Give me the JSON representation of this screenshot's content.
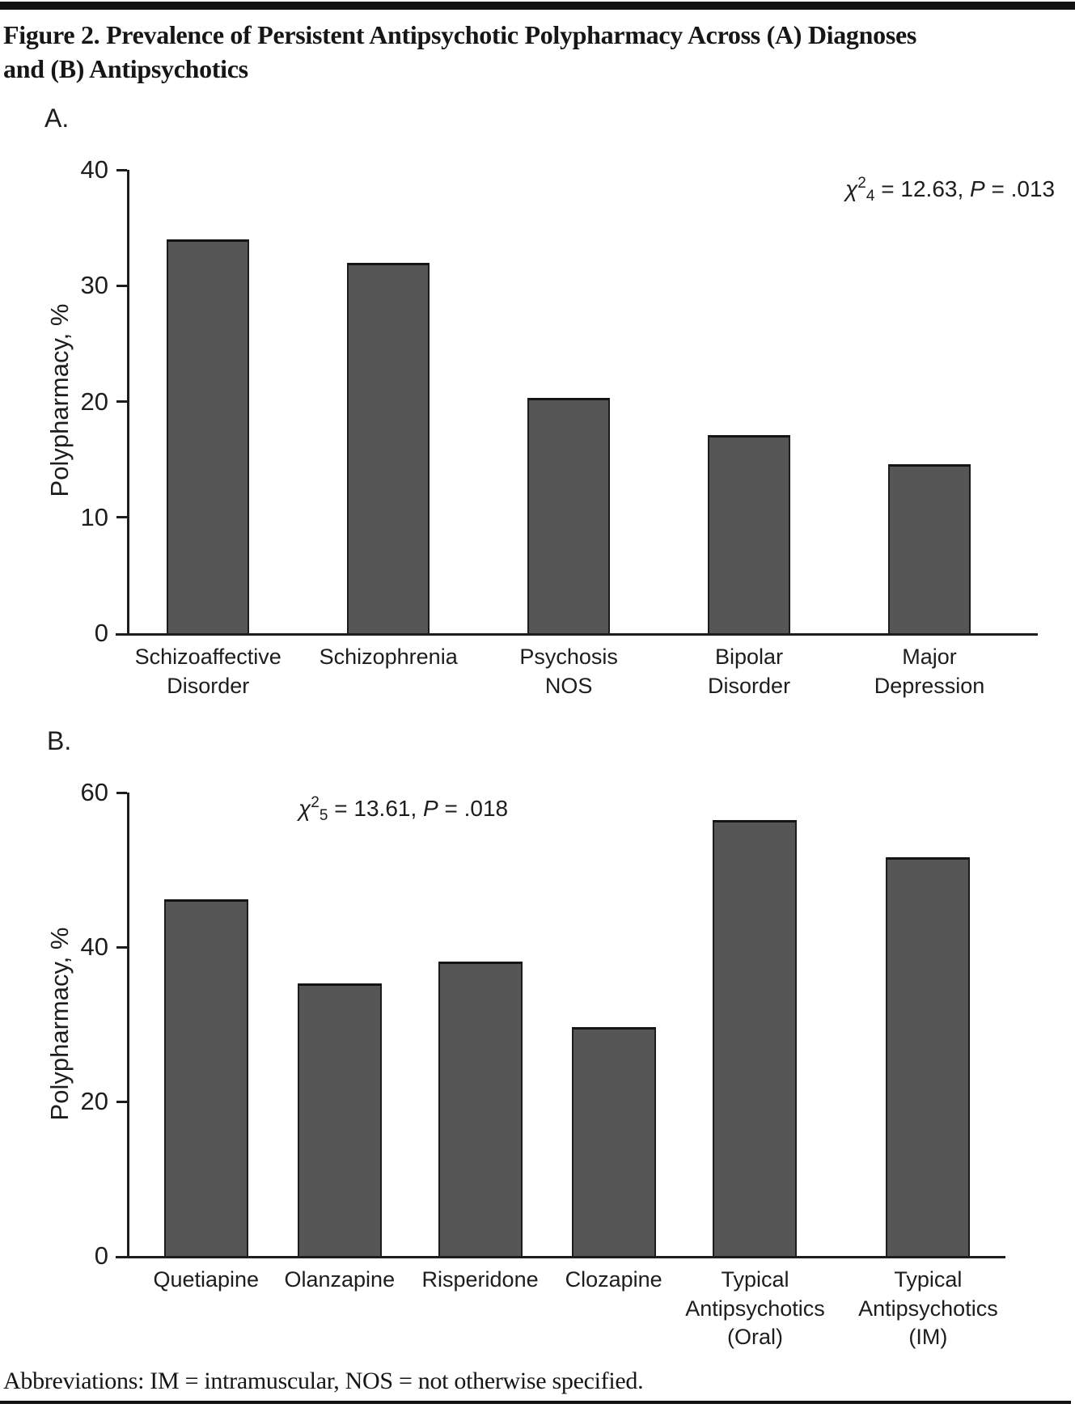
{
  "page": {
    "title": "Figure 2. Prevalence of Persistent Antipsychotic Polypharmacy Across (A) Diagnoses\nand (B) Antipsychotics",
    "footnote": "Abbreviations: IM = intramuscular, NOS = not otherwise specified."
  },
  "colors": {
    "bar_fill": "#575656",
    "bar_border": "#1c1c1c",
    "axis": "#1d1d1b",
    "rule": "#121212"
  },
  "chart_data": [
    {
      "id": "panel-a",
      "type": "bar",
      "panel_label": "A.",
      "title": "",
      "xlabel": "",
      "ylabel": "Polypharmacy, %",
      "ylim": [
        0,
        40
      ],
      "yticks": [
        0,
        10,
        20,
        30,
        40
      ],
      "grid": false,
      "legend": "none",
      "categories": [
        "Schizoaffective\nDisorder",
        "Schizophrenia",
        "Psychosis\nNOS",
        "Bipolar\nDisorder",
        "Major\nDepression"
      ],
      "values": [
        34.0,
        32.0,
        20.3,
        17.1,
        14.6
      ],
      "annotation": {
        "chi": "χ",
        "exponent": "2",
        "df": "4",
        "stat": " = 12.63, ",
        "p_label": "P",
        "p_value": " = .013"
      }
    },
    {
      "id": "panel-b",
      "type": "bar",
      "panel_label": "B.",
      "title": "",
      "xlabel": "",
      "ylabel": "Polypharmacy, %",
      "ylim": [
        0,
        60
      ],
      "yticks": [
        0,
        20,
        40,
        60
      ],
      "grid": false,
      "legend": "none",
      "categories": [
        "Quetiapine",
        "Olanzapine",
        "Risperidone",
        "Clozapine",
        "Typical\nAntipsychotics\n(Oral)",
        "Typical\nAntipsychotics\n(IM)"
      ],
      "values": [
        46.2,
        35.3,
        38.1,
        29.6,
        56.4,
        51.6
      ],
      "annotation": {
        "chi": "χ",
        "exponent": "2",
        "df": "5",
        "stat": " = 13.61, ",
        "p_label": "P",
        "p_value": " = .018"
      }
    }
  ]
}
